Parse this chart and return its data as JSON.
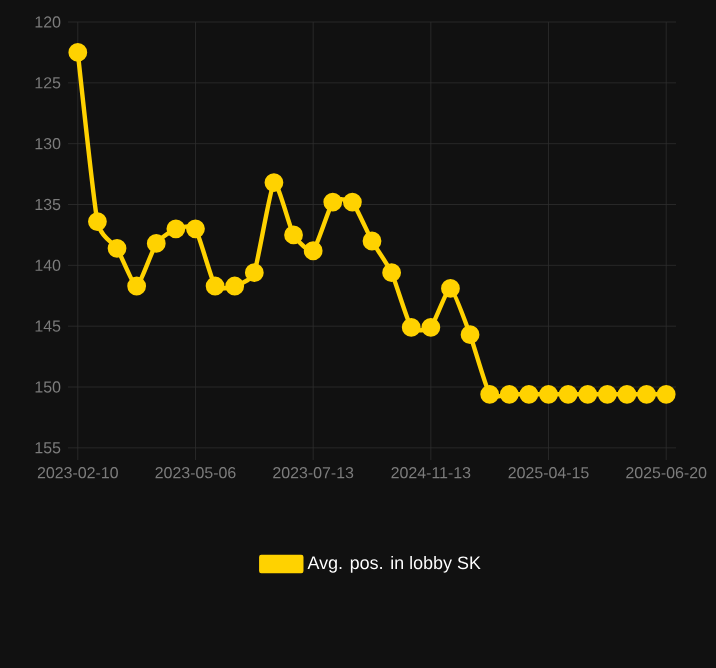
{
  "chart_data": {
    "type": "line",
    "categories": [
      "2023-02-10",
      null,
      null,
      null,
      null,
      null,
      "2023-05-06",
      null,
      null,
      null,
      null,
      null,
      "2023-07-13",
      null,
      null,
      null,
      null,
      null,
      "2024-11-13",
      null,
      null,
      null,
      null,
      null,
      "2025-04-15",
      null,
      null,
      null,
      null,
      null,
      "2025-06-20"
    ],
    "series": [
      {
        "name": "Avg. pos. in lobby SK",
        "color": "#ffd200",
        "values": [
          122.5,
          136.4,
          138.6,
          141.7,
          138.2,
          137.0,
          137.0,
          141.7,
          141.7,
          140.6,
          133.2,
          137.5,
          138.8,
          134.8,
          134.8,
          138.0,
          140.6,
          145.1,
          145.1,
          141.9,
          145.7,
          150.6,
          150.6,
          150.6,
          150.6,
          150.6,
          150.6,
          150.6,
          150.6,
          150.6,
          150.6
        ]
      }
    ],
    "ylim": [
      156,
      120
    ],
    "yticks": [
      120,
      125,
      130,
      135,
      140,
      145,
      150,
      155
    ],
    "grid": true,
    "legend": "bottom",
    "marker": "circle",
    "line_style": "solid"
  }
}
